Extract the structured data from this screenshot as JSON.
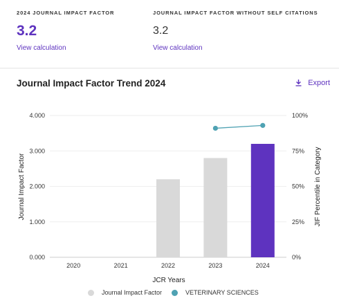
{
  "metrics": {
    "jif": {
      "label": "2024 JOURNAL IMPACT FACTOR",
      "value": "3.2",
      "link": "View calculation"
    },
    "jif_no_self": {
      "label": "JOURNAL IMPACT FACTOR WITHOUT SELF CITATIONS",
      "value": "3.2",
      "link": "View calculation"
    }
  },
  "trend": {
    "title": "Journal Impact Factor Trend 2024",
    "export_label": "Export"
  },
  "colors": {
    "accent": "#5e33bf",
    "bar_gray": "#d9d9d9",
    "bar_highlight": "#5e33bf",
    "percentile": "#4fa2b3"
  },
  "chart_data": {
    "type": "bar",
    "categories": [
      "2020",
      "2021",
      "2022",
      "2023",
      "2024"
    ],
    "xlabel": "JCR Years",
    "ylabel": "Journal Impact Factor",
    "y2label": "JIF Percentile in Category",
    "ylim": [
      0,
      4
    ],
    "y_ticks": [
      "0.000",
      "1.000",
      "2.000",
      "3.000",
      "4.000"
    ],
    "y2lim": [
      0,
      100
    ],
    "y2_ticks": [
      "0%",
      "25%",
      "50%",
      "75%",
      "100%"
    ],
    "grid": true,
    "legend_position": "bottom",
    "series": [
      {
        "name": "Journal Impact Factor",
        "kind": "bar",
        "axis": "left",
        "values": [
          null,
          null,
          2.2,
          2.8,
          3.2
        ],
        "highlight_index": 4
      },
      {
        "name": "VETERINARY SCIENCES",
        "kind": "line",
        "axis": "right",
        "values": [
          null,
          null,
          null,
          91,
          93
        ]
      }
    ]
  }
}
